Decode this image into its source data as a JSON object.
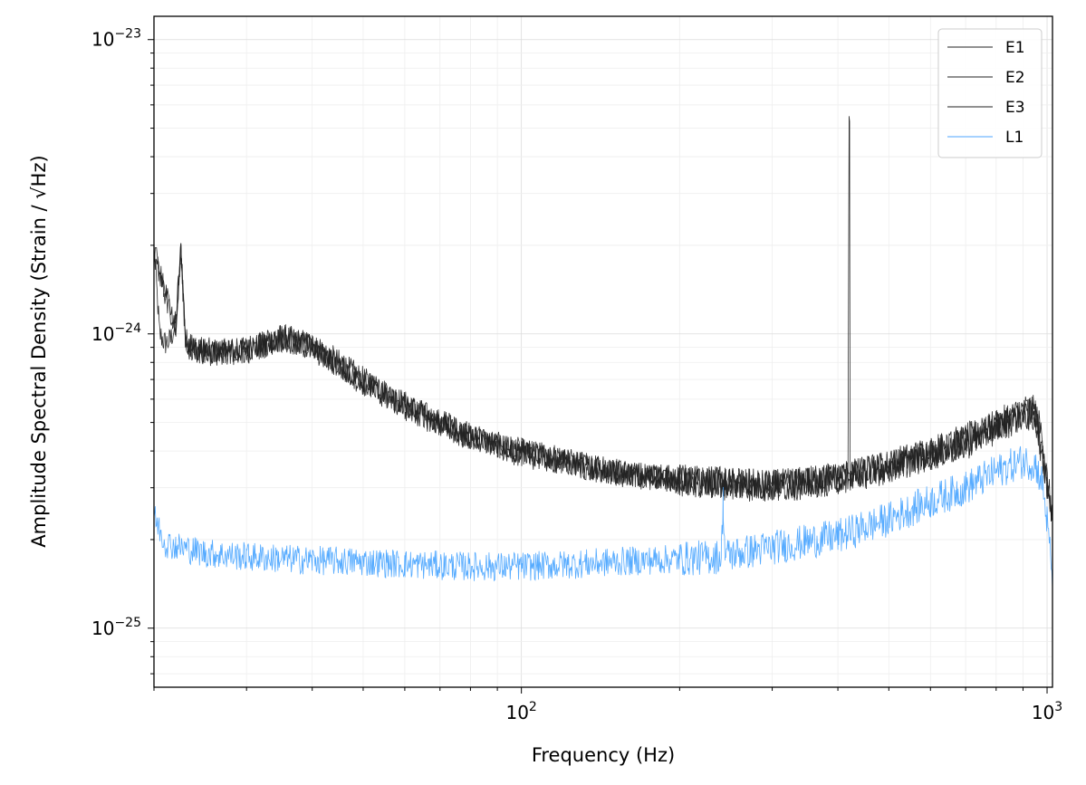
{
  "chart_data": {
    "type": "line",
    "xlabel": "Frequency (Hz)",
    "ylabel": "Amplitude Spectral Density (Strain / √Hz)",
    "xscale": "log",
    "yscale": "log",
    "xlim": [
      20,
      1024
    ],
    "ylim": [
      6.3e-26,
      1.2e-23
    ],
    "grid": true,
    "legend_position": "top-right",
    "x_ticks": [
      {
        "value": 100,
        "base": "10",
        "exp": "2"
      },
      {
        "value": 1000,
        "base": "10",
        "exp": "3"
      }
    ],
    "y_ticks": [
      {
        "value": 1e-25,
        "base": "10",
        "exp": "−25"
      },
      {
        "value": 1e-24,
        "base": "10",
        "exp": "−24"
      },
      {
        "value": 1e-23,
        "base": "10",
        "exp": "−23"
      }
    ],
    "series": [
      {
        "name": "E1",
        "color": "#222222",
        "x": [
          20,
          20.5,
          21,
          21.5,
          22,
          22.5,
          23,
          24,
          25,
          27,
          30,
          35,
          40,
          45,
          50,
          60,
          70,
          80,
          90,
          100,
          120,
          150,
          180,
          200,
          250,
          300,
          350,
          400,
          418,
          420,
          421,
          422,
          424,
          450,
          500,
          600,
          700,
          800,
          850,
          900,
          930,
          950,
          980,
          1000,
          1024
        ],
        "y": [
          2e-24,
          1e-24,
          9.3e-25,
          9.5e-25,
          1.1e-24,
          1.95e-24,
          9.5e-25,
          9e-25,
          8.8e-25,
          8.7e-25,
          8.8e-25,
          9.8e-25,
          9.2e-25,
          8e-25,
          7e-25,
          5.8e-25,
          5e-25,
          4.5e-25,
          4.2e-25,
          4e-25,
          3.7e-25,
          3.4e-25,
          3.3e-25,
          3.2e-25,
          3.1e-25,
          3.1e-25,
          3.15e-25,
          3.25e-25,
          3.3e-25,
          4.9e-24,
          4.9e-24,
          3.3e-25,
          3.3e-25,
          3.4e-25,
          3.6e-25,
          4e-25,
          4.4e-25,
          4.9e-25,
          5.2e-25,
          5.5e-25,
          5.6e-25,
          5.4e-25,
          4.5e-25,
          3.2e-25,
          2.4e-25
        ]
      },
      {
        "name": "E2",
        "color": "#222222",
        "x": [
          20,
          22,
          22.5,
          23,
          25,
          30,
          35,
          40,
          50,
          60,
          80,
          100,
          150,
          200,
          300,
          400,
          500,
          700,
          900,
          950,
          1000,
          1024
        ],
        "y": [
          1.9e-24,
          1.05e-24,
          1.9e-24,
          9.2e-25,
          8.7e-25,
          8.8e-25,
          9.7e-25,
          9e-25,
          6.9e-25,
          5.7e-25,
          4.5e-25,
          4e-25,
          3.4e-25,
          3.2e-25,
          3.05e-25,
          3.25e-25,
          3.55e-25,
          4.3e-25,
          5.4e-25,
          5.3e-25,
          3.2e-25,
          2.4e-25
        ]
      },
      {
        "name": "E3",
        "color": "#222222",
        "x": [
          20,
          22,
          22.5,
          23,
          25,
          30,
          35,
          40,
          50,
          60,
          80,
          100,
          150,
          200,
          300,
          400,
          500,
          700,
          900,
          950,
          1000,
          1024
        ],
        "y": [
          1.9e-24,
          1e-24,
          1.85e-24,
          9e-25,
          8.6e-25,
          8.7e-25,
          9.6e-25,
          8.9e-25,
          6.8e-25,
          5.6e-25,
          4.4e-25,
          3.9e-25,
          3.35e-25,
          3.15e-25,
          3e-25,
          3.2e-25,
          3.5e-25,
          4.2e-25,
          5.3e-25,
          5.2e-25,
          3.1e-25,
          2.35e-25
        ]
      },
      {
        "name": "L1",
        "color": "#4da6ff",
        "x": [
          20,
          21,
          22,
          25,
          30,
          40,
          50,
          60,
          80,
          100,
          120,
          150,
          200,
          240,
          242,
          244,
          250,
          300,
          400,
          500,
          600,
          700,
          800,
          900,
          950,
          980,
          1000,
          1024
        ],
        "y": [
          2.4e-25,
          1.95e-25,
          1.9e-25,
          1.8e-25,
          1.75e-25,
          1.7e-25,
          1.68e-25,
          1.65e-25,
          1.62e-25,
          1.62e-25,
          1.64e-25,
          1.68e-25,
          1.72e-25,
          1.75e-25,
          2.7e-25,
          1.76e-25,
          1.78e-25,
          1.88e-25,
          2.05e-25,
          2.35e-25,
          2.7e-25,
          3e-25,
          3.4e-25,
          3.7e-25,
          3.6e-25,
          3.1e-25,
          2.3e-25,
          1.5e-25
        ]
      }
    ]
  }
}
